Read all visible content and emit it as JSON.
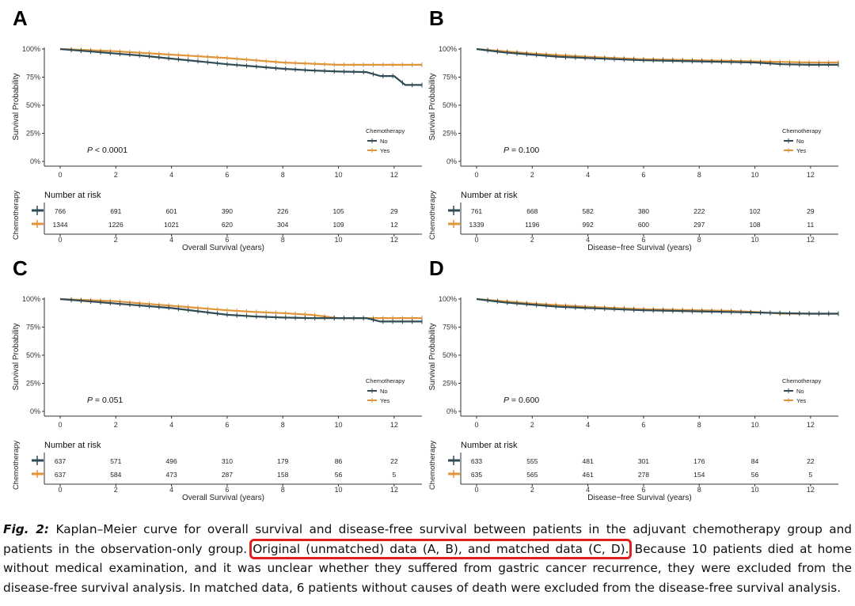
{
  "colors": {
    "no": "#2f4b55",
    "yes": "#e0953a",
    "highlight": "#e02020"
  },
  "panels": [
    {
      "letter": "A",
      "ylabel": "Survival Probability",
      "xlabel": "Overall Survival (years)",
      "pvalue_prefix": "P",
      "pvalue_rest": " < 0.0001",
      "legend_title": "Chemotherapy",
      "risk": {
        "title": "Number at risk",
        "ylabel": "Chemotherapy",
        "no": [
          "766",
          "691",
          "601",
          "390",
          "226",
          "105",
          "29"
        ],
        "yes": [
          "1344",
          "1226",
          "1021",
          "620",
          "304",
          "109",
          "12"
        ]
      }
    },
    {
      "letter": "B",
      "ylabel": "Survival Probability",
      "xlabel": "Disease−free Survival (years)",
      "pvalue_prefix": "P",
      "pvalue_rest": " = 0.100",
      "legend_title": "Chemotherapy",
      "risk": {
        "title": "Number at risk",
        "ylabel": "Chemotherapy",
        "no": [
          "761",
          "668",
          "582",
          "380",
          "222",
          "102",
          "29"
        ],
        "yes": [
          "1339",
          "1196",
          "992",
          "600",
          "297",
          "108",
          "11"
        ]
      }
    },
    {
      "letter": "C",
      "ylabel": "Survival Probability",
      "xlabel": "Overall Survival (years)",
      "pvalue_prefix": "P",
      "pvalue_rest": " = 0.051",
      "legend_title": "Chemotherapy",
      "risk": {
        "title": "Number at risk",
        "ylabel": "Chemotherapy",
        "no": [
          "637",
          "571",
          "496",
          "310",
          "179",
          "86",
          "22"
        ],
        "yes": [
          "637",
          "584",
          "473",
          "287",
          "158",
          "56",
          "5"
        ]
      }
    },
    {
      "letter": "D",
      "ylabel": "Survival Probability",
      "xlabel": "Disease−free Survival (years)",
      "pvalue_prefix": "P",
      "pvalue_rest": " = 0.600",
      "legend_title": "Chemotherapy",
      "risk": {
        "title": "Number at risk",
        "ylabel": "Chemotherapy",
        "no": [
          "633",
          "555",
          "481",
          "301",
          "176",
          "84",
          "22"
        ],
        "yes": [
          "635",
          "565",
          "461",
          "278",
          "154",
          "56",
          "5"
        ]
      }
    }
  ],
  "chart_data": [
    {
      "type": "line",
      "panel": "A",
      "xlim": [
        0,
        13
      ],
      "ylim": [
        0,
        100
      ],
      "xticks": [
        "0",
        "2",
        "4",
        "6",
        "8",
        "10",
        "12"
      ],
      "yticks": [
        "0%",
        "25%",
        "50%",
        "75%",
        "100%"
      ],
      "grid": false,
      "legend": "right",
      "series": [
        {
          "name": "No",
          "x": [
            0,
            1,
            2,
            3,
            4,
            5,
            6,
            7,
            8,
            9,
            10,
            11,
            11.5,
            12,
            12.4,
            13
          ],
          "y": [
            100,
            98,
            96,
            94,
            91.5,
            89,
            86.5,
            84.5,
            82.5,
            81,
            80,
            79.5,
            76,
            76,
            68,
            68
          ]
        },
        {
          "name": "Yes",
          "x": [
            0,
            1,
            2,
            3,
            4,
            5,
            6,
            7,
            8,
            9,
            10,
            11,
            12,
            13
          ],
          "y": [
            100,
            99,
            98,
            96.5,
            95,
            93.5,
            92,
            90,
            88,
            87,
            86,
            86,
            86,
            86
          ]
        }
      ]
    },
    {
      "type": "line",
      "panel": "B",
      "xlim": [
        0,
        13
      ],
      "ylim": [
        0,
        100
      ],
      "xticks": [
        "0",
        "2",
        "4",
        "6",
        "8",
        "10",
        "12"
      ],
      "yticks": [
        "0%",
        "25%",
        "50%",
        "75%",
        "100%"
      ],
      "grid": false,
      "legend": "right",
      "series": [
        {
          "name": "No",
          "x": [
            0,
            1,
            2,
            3,
            4,
            5,
            6,
            7,
            8,
            9,
            10,
            11,
            12,
            13
          ],
          "y": [
            100,
            97,
            95,
            93,
            92,
            91,
            90,
            89.5,
            89,
            88.5,
            88,
            86.5,
            86,
            86
          ]
        },
        {
          "name": "Yes",
          "x": [
            0,
            1,
            2,
            3,
            4,
            5,
            6,
            7,
            8,
            9,
            10,
            11,
            12,
            13
          ],
          "y": [
            100,
            98,
            96,
            94.5,
            93,
            92,
            91,
            90.5,
            90,
            89.5,
            89,
            88.5,
            88,
            88
          ]
        }
      ]
    },
    {
      "type": "line",
      "panel": "C",
      "xlim": [
        0,
        13
      ],
      "ylim": [
        0,
        100
      ],
      "xticks": [
        "0",
        "2",
        "4",
        "6",
        "8",
        "10",
        "12"
      ],
      "yticks": [
        "0%",
        "25%",
        "50%",
        "75%",
        "100%"
      ],
      "grid": false,
      "legend": "right",
      "series": [
        {
          "name": "No",
          "x": [
            0,
            1,
            2,
            3,
            4,
            5,
            6,
            7,
            8,
            9,
            10,
            11,
            11.5,
            12,
            13
          ],
          "y": [
            100,
            98,
            96,
            94,
            92,
            89,
            86,
            84.5,
            83.5,
            83,
            83,
            83,
            80,
            80,
            80
          ]
        },
        {
          "name": "Yes",
          "x": [
            0,
            1,
            2,
            3,
            4,
            5,
            6,
            7,
            8,
            9,
            10,
            11,
            12,
            13
          ],
          "y": [
            100,
            99,
            98,
            96,
            94,
            92,
            90,
            88.5,
            87.5,
            86,
            83,
            83,
            83,
            83
          ]
        }
      ]
    },
    {
      "type": "line",
      "panel": "D",
      "xlim": [
        0,
        13
      ],
      "ylim": [
        0,
        100
      ],
      "xticks": [
        "0",
        "2",
        "4",
        "6",
        "8",
        "10",
        "12"
      ],
      "yticks": [
        "0%",
        "25%",
        "50%",
        "75%",
        "100%"
      ],
      "grid": false,
      "legend": "right",
      "series": [
        {
          "name": "No",
          "x": [
            0,
            1,
            2,
            3,
            4,
            5,
            6,
            7,
            8,
            9,
            10,
            11,
            12,
            13
          ],
          "y": [
            100,
            97,
            95,
            93,
            92,
            91,
            90,
            89.5,
            89,
            88.5,
            88,
            87.5,
            87,
            87
          ]
        },
        {
          "name": "Yes",
          "x": [
            0,
            1,
            2,
            3,
            4,
            5,
            6,
            7,
            8,
            9,
            10,
            11,
            12,
            13
          ],
          "y": [
            100,
            98,
            96,
            94.5,
            93,
            92,
            91,
            90.5,
            90,
            89.5,
            88.5,
            87,
            87,
            87
          ]
        }
      ]
    }
  ],
  "caption": {
    "label": "Fig. 2:",
    "part1": " Kaplan–Meier curve for overall survival and disease-free survival between patients in the adjuvant chemotherapy group and patients in the observation-only group.",
    "highlight": "Original (unmatched) data (A, B), and matched data (C, D).",
    "part2": " Because 10 patients died at home without medical examination, and it was unclear whether they suffered from gastric cancer recurrence, they were excluded from the disease-free survival analysis. In matched data, 6 patients without causes of death were excluded from the disease-free survival analysis."
  }
}
